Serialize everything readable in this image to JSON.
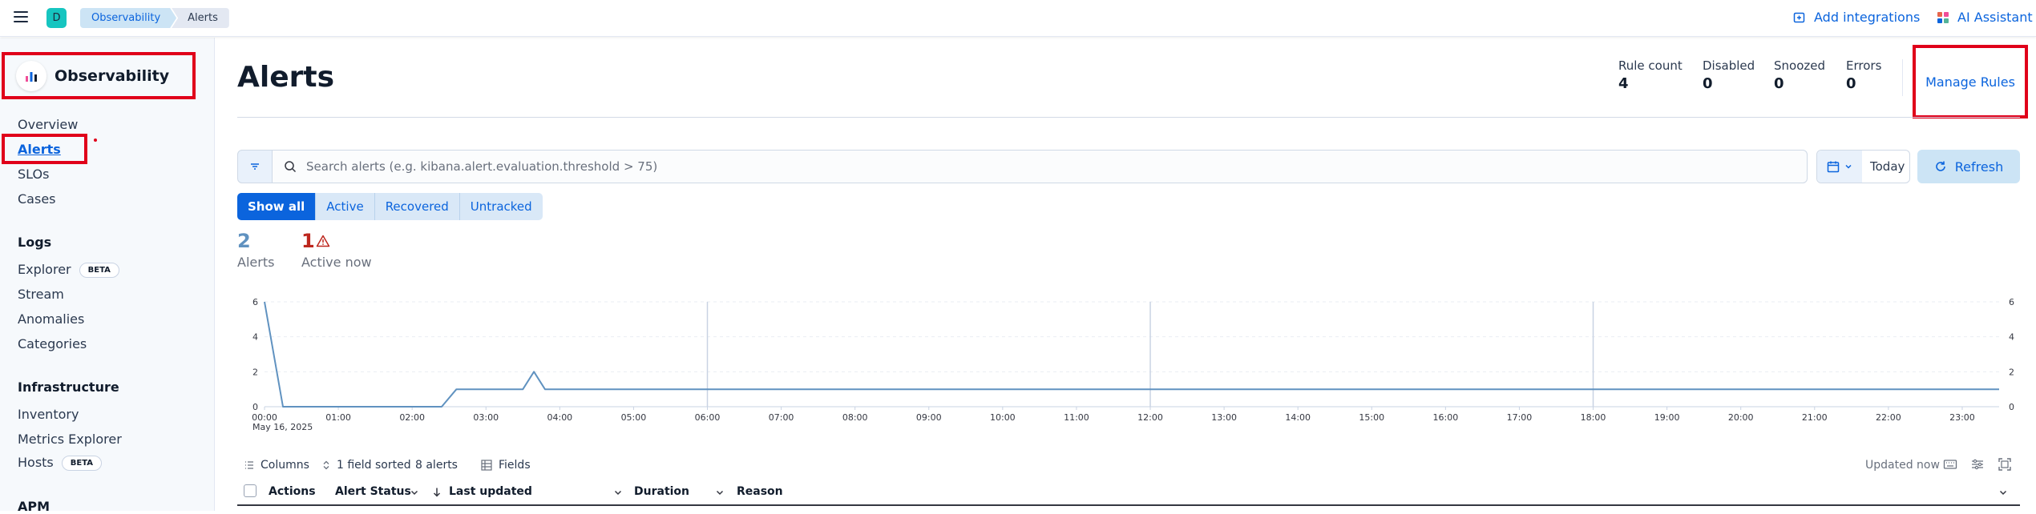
{
  "topbar": {
    "space_initial": "D",
    "breadcrumbs": [
      "Observability",
      "Alerts"
    ],
    "add_integrations": "Add integrations",
    "ai_assistant": "AI Assistant"
  },
  "sidebar": {
    "title": "Observability",
    "items": [
      {
        "label": "Overview"
      },
      {
        "label": "Alerts"
      },
      {
        "label": "SLOs"
      },
      {
        "label": "Cases"
      }
    ],
    "logs": {
      "heading": "Logs",
      "items": [
        {
          "label": "Explorer",
          "badge": "BETA"
        },
        {
          "label": "Stream"
        },
        {
          "label": "Anomalies"
        },
        {
          "label": "Categories"
        }
      ]
    },
    "infrastructure": {
      "heading": "Infrastructure",
      "items": [
        {
          "label": "Inventory"
        },
        {
          "label": "Metrics Explorer"
        },
        {
          "label": "Hosts",
          "badge": "BETA"
        }
      ]
    },
    "apm": {
      "heading": "APM"
    }
  },
  "header": {
    "title": "Alerts",
    "stats": [
      {
        "label": "Rule count",
        "value": "4"
      },
      {
        "label": "Disabled",
        "value": "0"
      },
      {
        "label": "Snoozed",
        "value": "0"
      },
      {
        "label": "Errors",
        "value": "0"
      }
    ],
    "manage_rules": "Manage Rules"
  },
  "search": {
    "placeholder": "Search alerts (e.g. kibana.alert.evaluation.threshold > 75)",
    "date_label": "Today",
    "refresh_label": "Refresh"
  },
  "status_filter": {
    "options": [
      "Show all",
      "Active",
      "Recovered",
      "Untracked"
    ],
    "selected": "Show all"
  },
  "summary": {
    "alerts_count": "2",
    "alerts_label": "Alerts",
    "active_count": "1",
    "active_label": "Active now"
  },
  "chart_data": {
    "type": "line",
    "x_ticks": [
      "00:00",
      "01:00",
      "02:00",
      "03:00",
      "04:00",
      "05:00",
      "06:00",
      "07:00",
      "08:00",
      "09:00",
      "10:00",
      "11:00",
      "12:00",
      "13:00",
      "14:00",
      "15:00",
      "16:00",
      "17:00",
      "18:00",
      "19:00",
      "20:00",
      "21:00",
      "22:00",
      "23:00"
    ],
    "x_sublabel": "May 16, 2025",
    "y_ticks": [
      0,
      2,
      4,
      6
    ],
    "ylim": [
      0,
      6
    ],
    "xlim_hours": [
      0,
      23.5
    ],
    "series": [
      {
        "color": "#6092c0",
        "points": [
          [
            0,
            6
          ],
          [
            0.25,
            0
          ],
          [
            2.4,
            0
          ],
          [
            2.6,
            1
          ],
          [
            3.5,
            1
          ],
          [
            3.65,
            2
          ],
          [
            3.8,
            1
          ],
          [
            23.5,
            1
          ]
        ]
      }
    ],
    "vertical_markers_hours": [
      6,
      12,
      18
    ],
    "grid": true
  },
  "table": {
    "toolbar": {
      "columns": "Columns",
      "sorted": "1 field sorted",
      "alerts_count": "8 alerts",
      "fields": "Fields",
      "updated": "Updated now"
    },
    "headers": [
      "Actions",
      "Alert Status",
      "Last updated",
      "Duration",
      "Reason"
    ]
  }
}
